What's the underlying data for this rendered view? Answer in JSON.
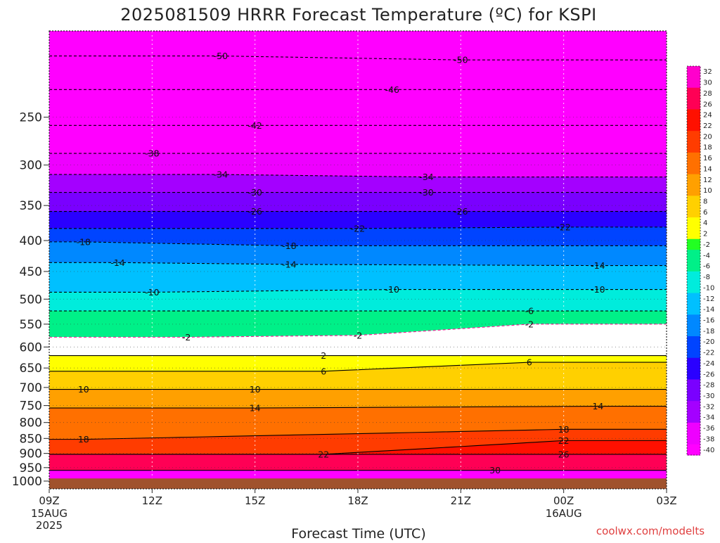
{
  "chart_data": {
    "type": "heatmap",
    "title": "2025081509 HRRR Forecast Temperature (ºC) for KSPI",
    "xlabel": "Forecast Time (UTC)",
    "credit": "coolwx.com/modelts",
    "x_ticks": [
      "09Z",
      "12Z",
      "15Z",
      "18Z",
      "21Z",
      "00Z",
      "03Z"
    ],
    "x_tick_hours": [
      9,
      12,
      15,
      18,
      21,
      24,
      27
    ],
    "x_date_labels": [
      {
        "hour": 9,
        "lines": [
          "15AUG",
          "2025"
        ]
      },
      {
        "hour": 24,
        "lines": [
          "16AUG"
        ]
      }
    ],
    "xlim": [
      9,
      27
    ],
    "y_ticks": [
      250,
      300,
      350,
      400,
      450,
      500,
      550,
      600,
      650,
      700,
      750,
      800,
      850,
      900,
      950,
      1000
    ],
    "ylim": [
      1030,
      180
    ],
    "y_unit": "hPa",
    "y_scale": "log",
    "ground_pressure": 990,
    "isotherm_labels": [
      {
        "value": -50,
        "hour": 14.0,
        "p": 198
      },
      {
        "value": -50,
        "hour": 21.0,
        "p": 201
      },
      {
        "value": -46,
        "hour": 19.0,
        "p": 225
      },
      {
        "value": -42,
        "hour": 15.0,
        "p": 258
      },
      {
        "value": -38,
        "hour": 12.0,
        "p": 287
      },
      {
        "value": -34,
        "hour": 14.0,
        "p": 311
      },
      {
        "value": -34,
        "hour": 20.0,
        "p": 314
      },
      {
        "value": -30,
        "hour": 15.0,
        "p": 333
      },
      {
        "value": -30,
        "hour": 20.0,
        "p": 333
      },
      {
        "value": -26,
        "hour": 15.0,
        "p": 358
      },
      {
        "value": -26,
        "hour": 21.0,
        "p": 358
      },
      {
        "value": -22,
        "hour": 18.0,
        "p": 382
      },
      {
        "value": -22,
        "hour": 24.0,
        "p": 380
      },
      {
        "value": -18,
        "hour": 10.0,
        "p": 402
      },
      {
        "value": -18,
        "hour": 16.0,
        "p": 408
      },
      {
        "value": -14,
        "hour": 11.0,
        "p": 435
      },
      {
        "value": -14,
        "hour": 16.0,
        "p": 438
      },
      {
        "value": -14,
        "hour": 25.0,
        "p": 440
      },
      {
        "value": -10,
        "hour": 12.0,
        "p": 487
      },
      {
        "value": -10,
        "hour": 19.0,
        "p": 482
      },
      {
        "value": -10,
        "hour": 25.0,
        "p": 482
      },
      {
        "value": -6,
        "hour": 23.0,
        "p": 523
      },
      {
        "value": -2,
        "hour": 13.0,
        "p": 578
      },
      {
        "value": -2,
        "hour": 18.0,
        "p": 574
      },
      {
        "value": -2,
        "hour": 23.0,
        "p": 550
      },
      {
        "value": 2,
        "hour": 17.0,
        "p": 620
      },
      {
        "value": 6,
        "hour": 17.0,
        "p": 658
      },
      {
        "value": 6,
        "hour": 23.0,
        "p": 636
      },
      {
        "value": 10,
        "hour": 10.0,
        "p": 705
      },
      {
        "value": 10,
        "hour": 15.0,
        "p": 705
      },
      {
        "value": 14,
        "hour": 15.0,
        "p": 757
      },
      {
        "value": 14,
        "hour": 25.0,
        "p": 752
      },
      {
        "value": 18,
        "hour": 10.0,
        "p": 853
      },
      {
        "value": 18,
        "hour": 24.0,
        "p": 821
      },
      {
        "value": 22,
        "hour": 17.0,
        "p": 903
      },
      {
        "value": 22,
        "hour": 24.0,
        "p": 857
      },
      {
        "value": 26,
        "hour": 24.0,
        "p": 903
      },
      {
        "value": 30,
        "hour": 22.0,
        "p": 960
      }
    ],
    "colorbar": {
      "labels": [
        "32",
        "30",
        "28",
        "26",
        "24",
        "22",
        "20",
        "18",
        "16",
        "14",
        "12",
        "10",
        "8",
        "6",
        "4",
        "2",
        "-2",
        "-4",
        "-6",
        "-8",
        "-10",
        "-12",
        "-14",
        "-16",
        "-18",
        "-20",
        "-22",
        "-24",
        "-26",
        "-28",
        "-30",
        "-32",
        "-34",
        "-36",
        "-38",
        "-40"
      ],
      "values": [
        32,
        30,
        28,
        26,
        24,
        22,
        20,
        18,
        16,
        14,
        12,
        10,
        8,
        6,
        4,
        2,
        -2,
        -4,
        -6,
        -8,
        -10,
        -12,
        -14,
        -16,
        -18,
        -20,
        -22,
        -24,
        -26,
        -28,
        -30,
        -32,
        -34,
        -36,
        -38,
        -40
      ]
    },
    "colors": {
      "ground": "#a0522d",
      "positive_contour": "#000000",
      "negative_contour": "#000000",
      "zero_contour": "#ff1493"
    }
  }
}
